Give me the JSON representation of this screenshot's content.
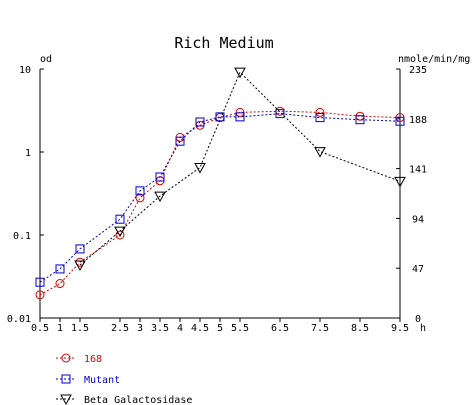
{
  "chart_data": {
    "type": "line",
    "title": "Rich Medium",
    "x_unit": "h",
    "y_left_label": "od",
    "y_right_label": "nmole/min/mg",
    "y_left_scale": "log",
    "y_left_lim": [
      0.01,
      10
    ],
    "y_left_ticks": [
      {
        "value": 0.01,
        "label": "0.01"
      },
      {
        "value": 0.1,
        "label": "0.1"
      },
      {
        "value": 1,
        "label": "1"
      },
      {
        "value": 10,
        "label": "10"
      }
    ],
    "y_right_lim": [
      0,
      235
    ],
    "y_right_ticks": [
      {
        "value": 0,
        "label": "0"
      },
      {
        "value": 47,
        "label": "47"
      },
      {
        "value": 94,
        "label": "94"
      },
      {
        "value": 141,
        "label": "141"
      },
      {
        "value": 188,
        "label": "188"
      },
      {
        "value": 235,
        "label": "235"
      }
    ],
    "x_lim": [
      0.5,
      9.5
    ],
    "x_ticks": [
      {
        "value": 0.5,
        "label": "0.5"
      },
      {
        "value": 1,
        "label": "1"
      },
      {
        "value": 1.5,
        "label": "1.5"
      },
      {
        "value": 2.5,
        "label": "2.5"
      },
      {
        "value": 3,
        "label": "3"
      },
      {
        "value": 3.5,
        "label": "3.5"
      },
      {
        "value": 4,
        "label": "4"
      },
      {
        "value": 4.5,
        "label": "4.5"
      },
      {
        "value": 5,
        "label": "5"
      },
      {
        "value": 5.5,
        "label": "5.5"
      },
      {
        "value": 6.5,
        "label": "6.5"
      },
      {
        "value": 7.5,
        "label": "7.5"
      },
      {
        "value": 8.5,
        "label": "8.5"
      },
      {
        "value": 9.5,
        "label": "9.5"
      }
    ],
    "grid": false,
    "legend_position": "bottom-left",
    "series": [
      {
        "name": "168",
        "axis": "left",
        "marker": "circle",
        "color": "#dd0000",
        "x": [
          0.5,
          1,
          1.5,
          2.5,
          3,
          3.5,
          4,
          4.5,
          5,
          5.5,
          6.5,
          7.5,
          8.5,
          9.5
        ],
        "y": [
          0.019,
          0.026,
          0.047,
          0.1,
          0.28,
          0.45,
          1.5,
          2.1,
          2.6,
          3.0,
          3.1,
          3.0,
          2.7,
          2.6
        ]
      },
      {
        "name": "Mutant",
        "axis": "left",
        "marker": "square",
        "color": "#0000cc",
        "x": [
          0.5,
          1,
          1.5,
          2.5,
          3,
          3.5,
          4,
          4.5,
          5,
          5.5,
          6.5,
          7.5,
          8.5,
          9.5
        ],
        "y": [
          0.027,
          0.039,
          0.068,
          0.155,
          0.34,
          0.5,
          1.35,
          2.3,
          2.65,
          2.65,
          2.9,
          2.6,
          2.45,
          2.35
        ]
      },
      {
        "name": "Beta Galactosidase",
        "axis": "right",
        "marker": "triangle-down",
        "color": "#000000",
        "x": [
          1.5,
          2.5,
          3.5,
          4.5,
          5.5,
          7.5,
          9.5
        ],
        "y": [
          50,
          82,
          115,
          142,
          232,
          157,
          129
        ]
      }
    ]
  }
}
